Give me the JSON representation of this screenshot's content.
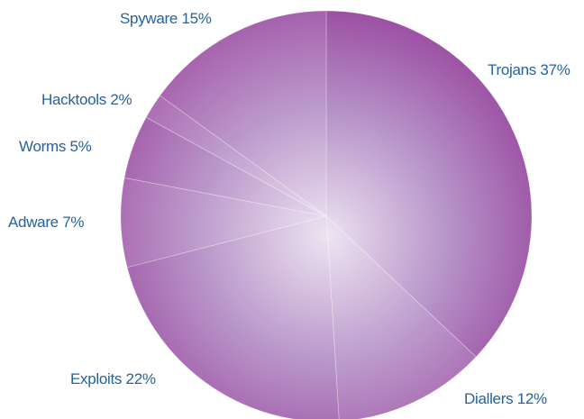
{
  "chart_data": {
    "type": "pie",
    "slices": [
      {
        "label": "Trojans 37%",
        "name": "Trojans",
        "value": 37
      },
      {
        "label": "Diallers 12%",
        "name": "Diallers",
        "value": 12
      },
      {
        "label": "Exploits 22%",
        "name": "Exploits",
        "value": 22
      },
      {
        "label": "Adware 7%",
        "name": "Adware",
        "value": 7
      },
      {
        "label": "Worms 5%",
        "name": "Worms",
        "value": 5
      },
      {
        "label": "Hacktools 2%",
        "name": "Hacktools",
        "value": 2
      },
      {
        "label": "Spyware 15%",
        "name": "Spyware",
        "value": 15
      }
    ],
    "start_angle_deg": 0,
    "direction": "clockwise",
    "colors": {
      "label_text": "#2462a0",
      "edge": "#9a4aa0",
      "highlight": "#eadff0"
    }
  }
}
